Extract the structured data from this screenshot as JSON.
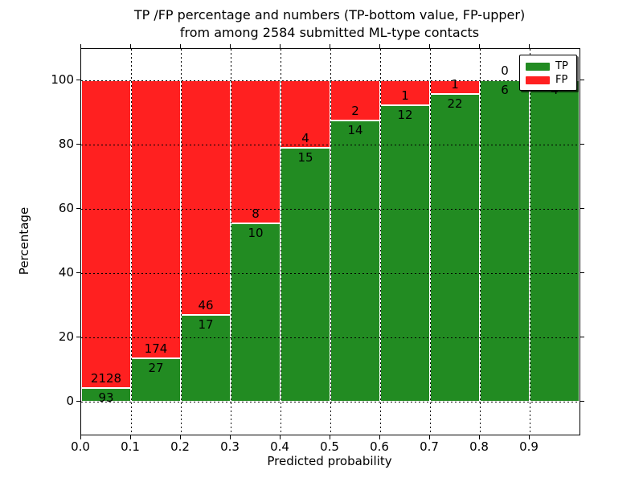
{
  "figure": {
    "background": "#ffffff",
    "title_line1": "TP /FP percentage and numbers (TP-bottom value, FP-upper)",
    "title_line2": "from among 2584 submitted ML-type contacts"
  },
  "chart_data": {
    "type": "bar",
    "stacked": true,
    "normalized_to_percent": true,
    "title": "TP /FP percentage and numbers (TP-bottom value, FP-upper) from among 2584 submitted ML-type contacts",
    "xlabel": "Predicted probability",
    "ylabel": "Percentage",
    "total_contacts": 2584,
    "xlim": [
      0.0,
      1.0
    ],
    "ylim": [
      -10.25,
      109.75
    ],
    "bar_width": 0.1,
    "grid": true,
    "grid_style": "dotted",
    "bin_starts": [
      0.0,
      0.1,
      0.2,
      0.3,
      0.4,
      0.5,
      0.6,
      0.7,
      0.8,
      0.9
    ],
    "x_tick_labels": [
      "0.0",
      "0.1",
      "0.2",
      "0.3",
      "0.4",
      "0.5",
      "0.6",
      "0.7",
      "0.8",
      "0.9"
    ],
    "y_tick_values": [
      0,
      20,
      40,
      60,
      80,
      100
    ],
    "series": [
      {
        "name": "TP",
        "color": "#228b22",
        "counts": [
          93,
          27,
          17,
          10,
          15,
          14,
          12,
          22,
          6,
          4
        ]
      },
      {
        "name": "FP",
        "color": "#ff2020",
        "counts": [
          2128,
          174,
          46,
          8,
          4,
          2,
          1,
          1,
          0,
          0
        ]
      }
    ],
    "tp_percent_of_bin": [
      4.19,
      13.43,
      26.98,
      55.56,
      78.95,
      87.5,
      92.31,
      95.65,
      100.0,
      100.0
    ],
    "annotation_note": "TP count printed below the TP/FP boundary, FP count printed above it",
    "legend": {
      "position": "upper-right",
      "entries": [
        {
          "label": "TP",
          "color": "#228b22"
        },
        {
          "label": "FP",
          "color": "#ff2020"
        }
      ]
    }
  }
}
